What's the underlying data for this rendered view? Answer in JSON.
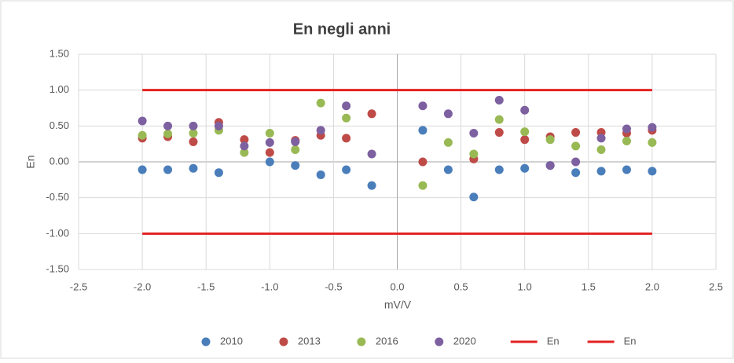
{
  "chart_data": {
    "type": "scatter",
    "title": "En negli anni",
    "x_label": "mV/V",
    "y_label": "En",
    "x": [
      -2.0,
      -1.8,
      -1.6,
      -1.4,
      -1.2,
      -1.0,
      -0.8,
      -0.6,
      -0.4,
      -0.2,
      0.2,
      0.4,
      0.6,
      0.8,
      1.0,
      1.2,
      1.4,
      1.6,
      1.8,
      2.0
    ],
    "series": [
      {
        "name": "2010",
        "color": "#4a7ebb",
        "values": [
          -0.11,
          -0.11,
          -0.09,
          -0.15,
          null,
          0.0,
          -0.05,
          -0.18,
          -0.11,
          -0.33,
          0.44,
          -0.11,
          -0.49,
          -0.11,
          -0.09,
          -0.05,
          -0.15,
          -0.13,
          -0.11,
          -0.13
        ]
      },
      {
        "name": "2013",
        "color": "#be4b48",
        "values": [
          0.33,
          0.35,
          0.28,
          0.55,
          0.31,
          0.13,
          0.3,
          0.37,
          0.33,
          0.67,
          0.0,
          null,
          0.04,
          0.41,
          0.31,
          0.35,
          0.41,
          0.41,
          0.4,
          0.44
        ]
      },
      {
        "name": "2016",
        "color": "#98b954",
        "values": [
          0.37,
          0.39,
          0.4,
          0.44,
          0.13,
          0.4,
          0.17,
          0.82,
          0.61,
          null,
          -0.33,
          0.27,
          0.11,
          0.59,
          0.42,
          0.31,
          0.22,
          0.17,
          0.29,
          0.27
        ]
      },
      {
        "name": "2020",
        "color": "#7d60a0",
        "values": [
          0.57,
          0.5,
          0.5,
          0.5,
          0.22,
          0.27,
          0.28,
          0.44,
          0.78,
          0.11,
          0.78,
          0.67,
          0.4,
          0.86,
          0.72,
          -0.05,
          0.0,
          0.33,
          0.46,
          0.48
        ]
      },
      {
        "name": "En",
        "type": "line",
        "color": "#e32222",
        "x": [
          -2.0,
          2.0
        ],
        "values": [
          1.0,
          1.0
        ]
      },
      {
        "name": "En",
        "type": "line",
        "color": "#e32222",
        "x": [
          -2.0,
          2.0
        ],
        "values": [
          -1.0,
          -1.0
        ]
      }
    ],
    "xlim": [
      -2.5,
      2.5
    ],
    "xticks": [
      -2.5,
      {
        "value": -2,
        "label": "-2.0"
      },
      -1.5,
      {
        "value": -1,
        "label": "-1.0"
      },
      -0.5,
      {
        "value": 0,
        "label": "0.0"
      },
      0.5,
      {
        "value": 1,
        "label": "1.0"
      },
      1.5,
      {
        "value": 2,
        "label": "2.0"
      },
      2.5
    ],
    "ylim": [
      -1.5,
      1.5
    ],
    "yticks": [
      {
        "value": -1.5,
        "label": "-1.50"
      },
      {
        "value": -1,
        "label": "-1.00"
      },
      {
        "value": -0.5,
        "label": "-0.50"
      },
      {
        "value": 0,
        "label": "0.00"
      },
      {
        "value": 0.5,
        "label": "0.50"
      },
      {
        "value": 1,
        "label": "1.00"
      },
      {
        "value": 1.5,
        "label": "1.50"
      }
    ],
    "grid": true,
    "legend": "bottom"
  }
}
